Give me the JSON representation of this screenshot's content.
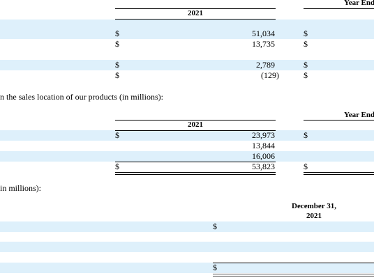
{
  "table_1": {
    "period": "Year Ende",
    "year": "2021",
    "rows": [
      {
        "currency": "$",
        "amount": "51,034",
        "next_currency": "$"
      },
      {
        "currency": "$",
        "amount": "13,735",
        "next_currency": "$"
      },
      {
        "currency": "$",
        "amount": "2,789",
        "next_currency": "$"
      },
      {
        "currency": "$",
        "amount": "(129)",
        "next_currency": "$"
      }
    ]
  },
  "intro_2": "n the sales location of our products (in millions):",
  "table_2": {
    "period": "Year Ende",
    "year": "2021",
    "rows": [
      {
        "currency": "$",
        "amount": "23,973",
        "next_currency": "$"
      },
      {
        "amount": "13,844"
      },
      {
        "amount": "16,006"
      },
      {
        "currency": "$",
        "amount": "53,823",
        "next_currency": "$"
      }
    ]
  },
  "intro_3": "in millions):",
  "table_3": {
    "period": "December 31,",
    "year": "2021",
    "rows": [
      {
        "currency": "$"
      },
      {
        "currency": "$"
      }
    ]
  }
}
